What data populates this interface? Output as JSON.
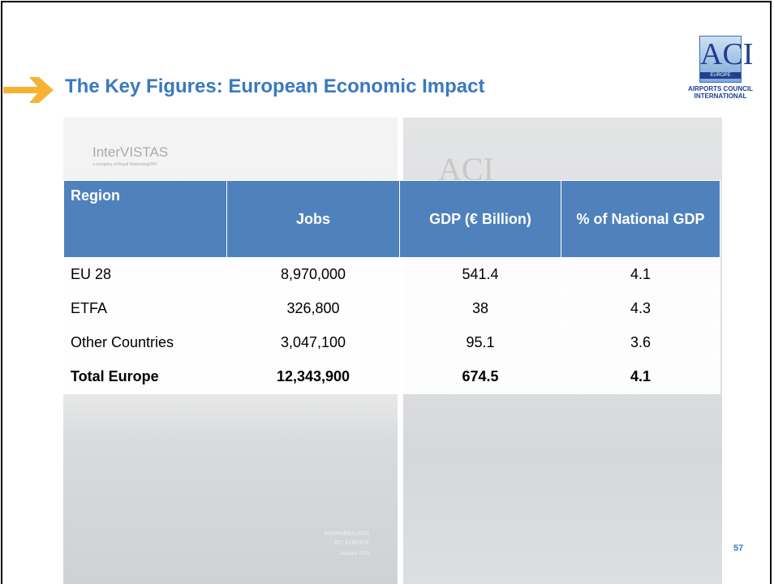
{
  "header": {
    "title": "The Key Figures: European Economic Impact"
  },
  "logo": {
    "mark": "ACI",
    "region": "EUROPE",
    "line1": "AIRPORTS COUNCIL",
    "line2": "INTERNATIONAL"
  },
  "background": {
    "brand": "InterVISTAS",
    "tagline": "a company of Royal HaskoningDHV",
    "cover_mark": "ACI",
    "prepared": "PREPARED FOR",
    "client": "ACI EUROPE",
    "date": "January 2015"
  },
  "table": {
    "columns": [
      "Region",
      "Jobs",
      "GDP (€ Billion)",
      "% of National GDP"
    ],
    "rows": [
      [
        "EU 28",
        "8,970,000",
        "541.4",
        "4.1"
      ],
      [
        "ETFA",
        "326,800",
        "38",
        "4.3"
      ],
      [
        "Other Countries",
        "3,047,100",
        "95.1",
        "3.6"
      ],
      [
        "Total Europe",
        "12,343,900",
        "674.5",
        "4.1"
      ]
    ]
  },
  "footer": {
    "page": "57"
  }
}
